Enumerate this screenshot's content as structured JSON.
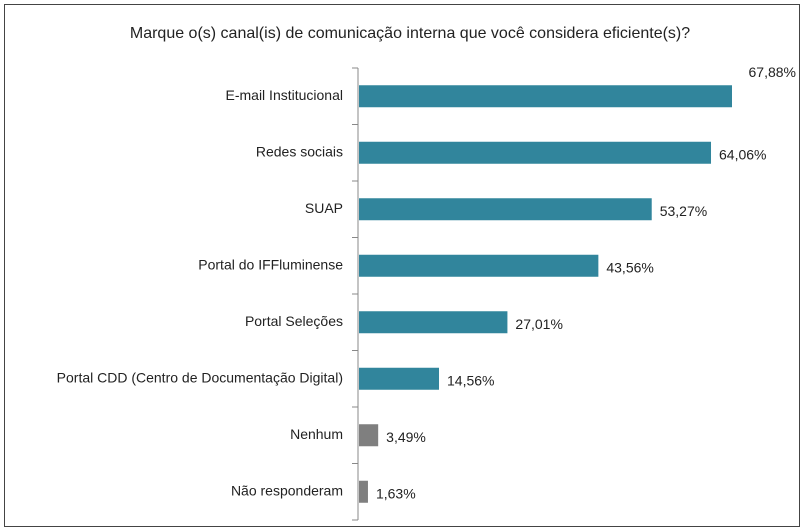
{
  "chart_data": {
    "type": "bar",
    "orientation": "horizontal",
    "title": "Marque o(s) canal(is) de comunicação interna que você considera eficiente(s)?",
    "categories": [
      "E-mail Institucional",
      "Redes sociais",
      "SUAP",
      "Portal do IFFluminense",
      "Portal Seleções",
      "Portal CDD (Centro de Documentação Digital)",
      "Nenhum",
      "Não responderam"
    ],
    "values": [
      67.88,
      64.06,
      53.27,
      43.56,
      27.01,
      14.56,
      3.49,
      1.63
    ],
    "value_labels": [
      "67,88%",
      "64,06%",
      "53,27%",
      "43,56%",
      "27,01%",
      "14,56%",
      "3,49%",
      "1,63%"
    ],
    "colors": [
      "#31859c",
      "#31859c",
      "#31859c",
      "#31859c",
      "#31859c",
      "#31859c",
      "#7f7f7f",
      "#7f7f7f"
    ]
  }
}
